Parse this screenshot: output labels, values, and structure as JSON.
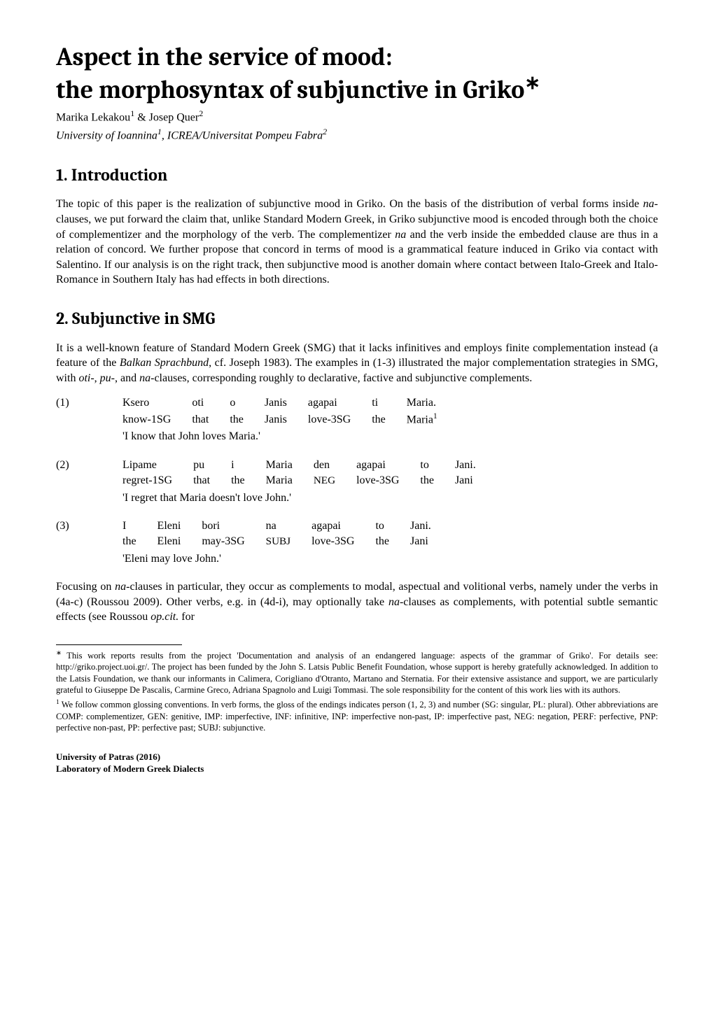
{
  "title": {
    "line1": "Aspect in the service of mood:",
    "line2_pre": "the morphosyntax of subjunctive in Griko",
    "asterisk": "∗"
  },
  "authors": {
    "name1": "Marika Lekakou",
    "sup1": "1",
    "amp": " & ",
    "name2": "Josep Quer",
    "sup2": "2"
  },
  "affiliation": {
    "part1": "University of Ioannina",
    "sup1": "1",
    "sep": ", ",
    "part2": "ICREA/Universitat Pompeu Fabra",
    "sup2": "2"
  },
  "section1": {
    "title": "1. Introduction",
    "para1_a": "The topic of this paper is the realization of subjunctive mood in Griko. On the basis of the distribution of verbal forms inside ",
    "para1_b": "na",
    "para1_c": "-clauses, we put forward the claim that, unlike Standard Modern Greek, in Griko subjunctive mood is encoded through both the choice of complementizer and the morphology of the verb. The complementizer ",
    "para1_d": "na",
    "para1_e": " and the verb inside the embedded clause are thus in a relation of concord. We further propose that concord in terms of mood is a grammatical feature induced in Griko via contact with Salentino. If our analysis is on the right track, then subjunctive mood is another domain where contact between Italo-Greek and Italo-Romance in Southern Italy has had effects in both directions."
  },
  "section2": {
    "title": "2. Subjunctive in SMG",
    "para1_a": "It is a well-known feature of Standard Modern Greek (SMG) that it lacks infinitives and employs finite complementation instead (a feature of the ",
    "para1_b": "Balkan Sprachbund",
    "para1_c": ", cf. Joseph 1983). The examples in (1-3) illustrated the major complementation strategies in SMG, with ",
    "para1_d": "oti",
    "para1_e": "-, ",
    "para1_f": "pu-",
    "para1_g": ", and ",
    "para1_h": "na",
    "para1_i": "-clauses, corresponding roughly to declarative, factive and subjunctive complements.",
    "para2_a": "Focusing on ",
    "para2_b": "na",
    "para2_c": "-clauses in particular, they occur as complements to modal, aspectual and volitional verbs, namely under the verbs in (4a-c) (Roussou 2009). Other verbs, e.g. in (4d-i), may optionally take ",
    "para2_d": "na",
    "para2_e": "-clauses as complements, with potential subtle semantic effects (see Roussou ",
    "para2_f": "op.cit.",
    "para2_g": " for"
  },
  "ex1": {
    "num": "(1)",
    "r1": [
      "Ksero",
      "oti",
      "o",
      "Janis",
      "agapai",
      "ti",
      "Maria."
    ],
    "r2": [
      "know-1SG",
      "that",
      "the",
      "Janis",
      "love-3SG",
      "the",
      "Maria"
    ],
    "r2_sup": "1",
    "trans": "'I know that John loves Maria.'"
  },
  "ex2": {
    "num": "(2)",
    "r1": [
      "Lipame",
      "pu",
      "i",
      "Maria",
      "den",
      "agapai",
      "to",
      "Jani."
    ],
    "r2": [
      "regret-1SG",
      "that",
      "the",
      "Maria",
      "NEG",
      "love-3SG",
      "the",
      "Jani"
    ],
    "trans": "'I regret that Maria doesn't love John.'"
  },
  "ex3": {
    "num": "(3)",
    "r1": [
      "I",
      "Eleni",
      "bori",
      "na",
      "agapai",
      "to",
      "Jani."
    ],
    "r2": [
      "the",
      "Eleni",
      "may-3SG",
      "SUBJ",
      "love-3SG",
      "the",
      "Jani"
    ],
    "trans": "'Eleni may love John.'"
  },
  "footnotes": {
    "fn_ast_marker": "∗",
    "fn_ast": " This work reports results from the project 'Documentation and analysis of an endangered language: aspects of the grammar of Griko'. For details see: http://griko.project.uoi.gr/. The project has been funded by the John S. Latsis Public Benefit Foundation, whose support is hereby gratefully acknowledged. In addition to the Latsis Foundation, we thank our informants in Calimera, Corigliano d'Otranto, Martano and Sternatia. For their extensive assistance and support, we are particularly grateful to Giuseppe De Pascalis, Carmine Greco, Adriana Spagnolo and Luigi Tommasi. The sole responsibility for the content of this work lies with its authors.",
    "fn1_marker": "1",
    "fn1": " We follow common glossing conventions. In verb forms, the gloss of the endings indicates person (1, 2, 3) and number (SG: singular, PL: plural). Other abbreviations are COMP: complementizer, GEN: genitive, IMP: imperfective, INF: infinitive, INP: imperfective non-past, IP: imperfective past, NEG: negation, PERF: perfective, PNP: perfective non-past, PP: perfective past; SUBJ: subjunctive."
  },
  "footer": {
    "line1": "University of Patras (2016)",
    "line2": "Laboratory of Modern Greek Dialects"
  }
}
